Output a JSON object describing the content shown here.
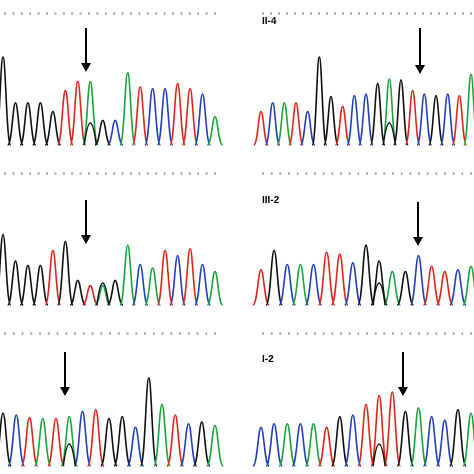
{
  "panels": [
    {
      "label": "",
      "colors": [
        "black",
        "black",
        "black",
        "black",
        "black",
        "red",
        "red",
        "green",
        "black",
        "blue",
        "green",
        "red",
        "blue",
        "blue",
        "red",
        "red",
        "blue",
        "green"
      ],
      "levels": [
        1.0,
        0.48,
        0.48,
        0.48,
        0.38,
        0.62,
        0.72,
        0.72,
        0.28,
        0.28,
        0.82,
        0.66,
        0.64,
        0.64,
        0.7,
        0.64,
        0.58,
        0.32
      ],
      "arrow_peak": 7
    },
    {
      "label": "II-4",
      "colors": [
        "red",
        "blue",
        "green",
        "red",
        "blue",
        "black",
        "black",
        "red",
        "blue",
        "blue",
        "black",
        "green",
        "black",
        "red",
        "blue",
        "black",
        "blue",
        "red",
        "green"
      ],
      "levels": [
        0.38,
        0.48,
        0.48,
        0.48,
        0.38,
        1.0,
        0.55,
        0.44,
        0.56,
        0.58,
        0.7,
        0.75,
        0.74,
        0.62,
        0.58,
        0.56,
        0.58,
        0.56,
        0.8
      ],
      "arrow_peak": 11
    },
    {
      "label": "",
      "colors": [
        "black",
        "black",
        "black",
        "black",
        "red",
        "black",
        "black",
        "red",
        "green",
        "black",
        "green",
        "blue",
        "green",
        "red",
        "blue",
        "red",
        "blue",
        "green"
      ],
      "levels": [
        0.8,
        0.5,
        0.45,
        0.45,
        0.62,
        0.72,
        0.28,
        0.22,
        0.22,
        0.28,
        0.68,
        0.46,
        0.42,
        0.62,
        0.56,
        0.64,
        0.46,
        0.38
      ],
      "arrow_peak": 8
    },
    {
      "label": "III-2",
      "colors": [
        "red",
        "black",
        "blue",
        "green",
        "blue",
        "red",
        "red",
        "blue",
        "black",
        "black",
        "green",
        "black",
        "blue",
        "red",
        "red",
        "blue",
        "green"
      ],
      "levels": [
        0.4,
        0.62,
        0.46,
        0.46,
        0.46,
        0.6,
        0.58,
        0.48,
        0.68,
        0.5,
        0.38,
        0.38,
        0.56,
        0.44,
        0.38,
        0.4,
        0.44
      ],
      "arrow_peak": 9
    },
    {
      "label": "",
      "colors": [
        "black",
        "blue",
        "red",
        "green",
        "red",
        "green",
        "blue",
        "red",
        "black",
        "black",
        "blue",
        "black",
        "green",
        "red",
        "blue",
        "black",
        "green"
      ],
      "levels": [
        0.6,
        0.58,
        0.55,
        0.54,
        0.54,
        0.56,
        0.62,
        0.64,
        0.54,
        0.56,
        0.44,
        1.0,
        0.7,
        0.58,
        0.48,
        0.5,
        0.46
      ],
      "arrow_peak": 5
    },
    {
      "label": "I-2",
      "colors": [
        "blue",
        "blue",
        "green",
        "blue",
        "green",
        "red",
        "black",
        "blue",
        "red",
        "red",
        "red",
        "black",
        "green",
        "blue",
        "blue",
        "black",
        "green"
      ],
      "levels": [
        0.44,
        0.48,
        0.48,
        0.48,
        0.48,
        0.44,
        0.56,
        0.58,
        0.7,
        0.8,
        0.84,
        0.62,
        0.66,
        0.56,
        0.52,
        0.64,
        0.6
      ],
      "arrow_peak": 9
    }
  ],
  "trace_colors": {
    "black": "#111111",
    "red": "#e2231a",
    "green": "#1aa43a",
    "blue": "#1f3fbf"
  }
}
